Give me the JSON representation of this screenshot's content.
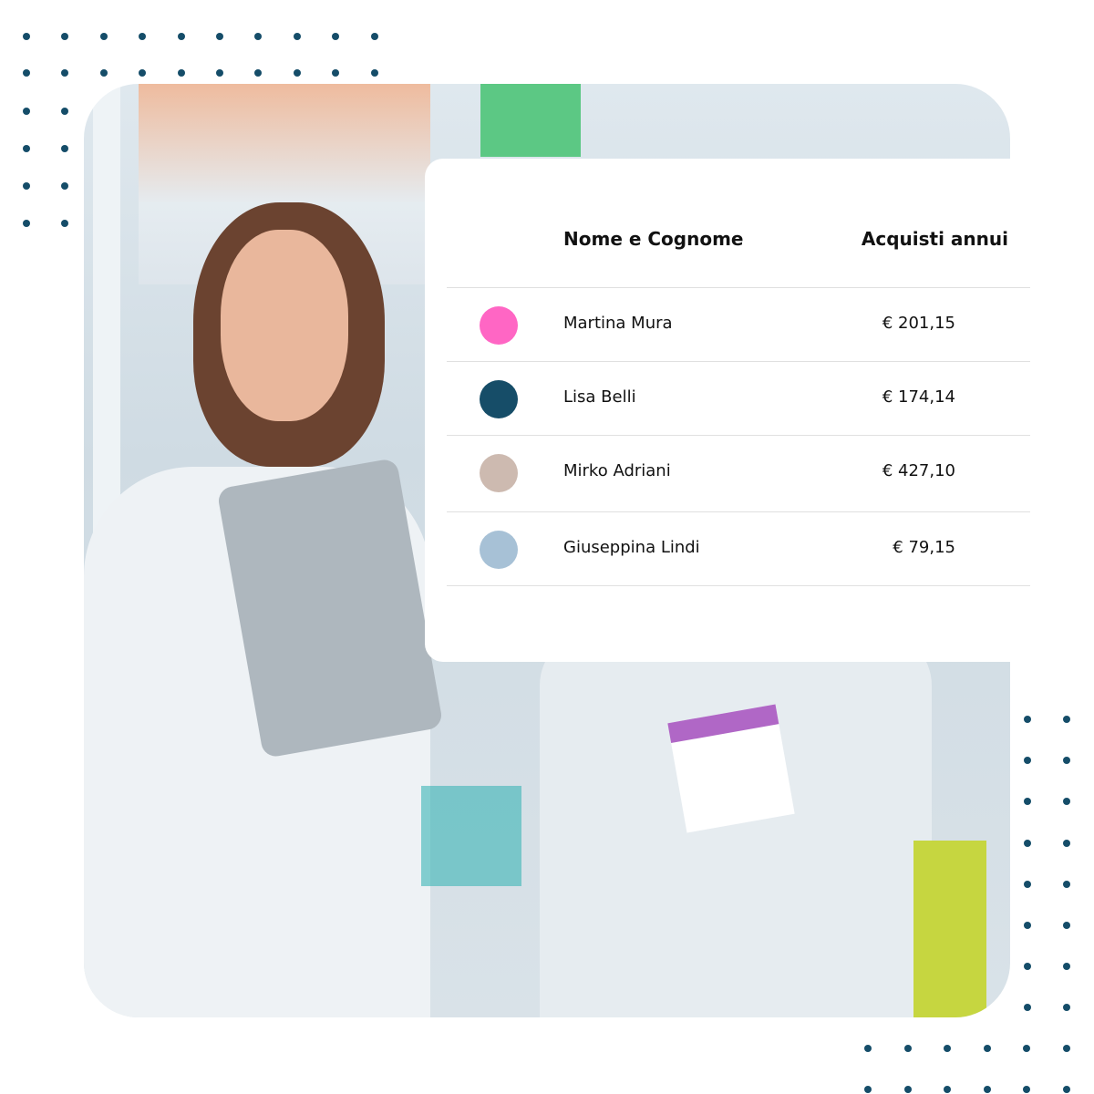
{
  "table": {
    "headers": {
      "name": "Nome e Cognome",
      "purchases": "Acquisti annui"
    },
    "rows": [
      {
        "name": "Martina Mura",
        "amount": "€ 201,15",
        "color": "#ff66c4"
      },
      {
        "name": "Lisa Belli",
        "amount": "€ 174,14",
        "color": "#164d68"
      },
      {
        "name": "Mirko Adriani",
        "amount": "€ 427,10",
        "color": "#cdbab0"
      },
      {
        "name": "Giuseppina Lindi",
        "amount": "€ 79,15",
        "color": "#a7c1d6"
      }
    ]
  },
  "colors": {
    "dots": "#154d69"
  }
}
